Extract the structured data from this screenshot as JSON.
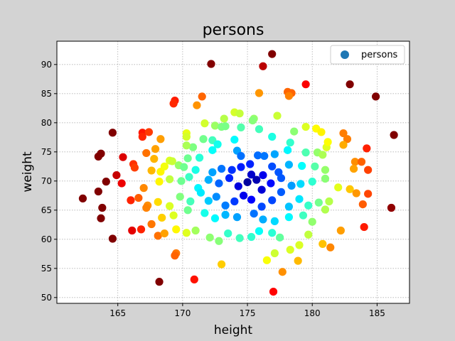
{
  "chart_data": {
    "type": "scatter",
    "title": "persons",
    "xlabel": "height",
    "ylabel": "weight",
    "xlim": [
      160.3,
      187.5
    ],
    "ylim": [
      49.0,
      94.0
    ],
    "xticks": [
      165,
      170,
      175,
      180,
      185
    ],
    "yticks": [
      50,
      55,
      60,
      65,
      70,
      75,
      80,
      85,
      90
    ],
    "grid": true,
    "legend": {
      "position": "top-right",
      "entries": [
        "persons"
      ]
    },
    "colormap": "jet (by distance from center)",
    "series": [
      {
        "name": "persons",
        "points": [
          [
            176.9,
            91.8
          ],
          [
            172.2,
            90.1
          ],
          [
            176.2,
            89.7
          ],
          [
            179.5,
            86.6
          ],
          [
            182.9,
            86.6
          ],
          [
            184.9,
            84.5
          ],
          [
            171.5,
            84.5
          ],
          [
            175.9,
            85.1
          ],
          [
            178.1,
            85.3
          ],
          [
            178.4,
            85.1
          ],
          [
            178.2,
            84.6
          ],
          [
            169.4,
            83.8
          ],
          [
            169.3,
            83.3
          ],
          [
            171.1,
            83.0
          ],
          [
            174.0,
            81.8
          ],
          [
            174.4,
            81.6
          ],
          [
            177.3,
            81.2
          ],
          [
            175.5,
            80.7
          ],
          [
            175.4,
            80.4
          ],
          [
            173.2,
            80.7
          ],
          [
            171.7,
            79.9
          ],
          [
            172.5,
            79.5
          ],
          [
            173.0,
            79.3
          ],
          [
            170.3,
            78.2
          ],
          [
            164.6,
            78.3
          ],
          [
            166.9,
            78.3
          ],
          [
            167.4,
            78.4
          ],
          [
            166.9,
            77.6
          ],
          [
            168.3,
            77.2
          ],
          [
            170.3,
            77.6
          ],
          [
            171.6,
            77.2
          ],
          [
            172.3,
            77.0
          ],
          [
            173.3,
            79.4
          ],
          [
            174.0,
            77.1
          ],
          [
            174.5,
            79.2
          ],
          [
            175.9,
            78.9
          ],
          [
            176.9,
            77.6
          ],
          [
            178.6,
            78.5
          ],
          [
            179.5,
            79.3
          ],
          [
            180.3,
            79.0
          ],
          [
            180.7,
            78.4
          ],
          [
            182.4,
            78.2
          ],
          [
            182.7,
            77.2
          ],
          [
            186.3,
            77.9
          ],
          [
            163.7,
            74.7
          ],
          [
            163.5,
            74.2
          ],
          [
            165.4,
            74.1
          ],
          [
            166.2,
            72.9
          ],
          [
            167.2,
            74.8
          ],
          [
            167.9,
            75.5
          ],
          [
            167.8,
            73.8
          ],
          [
            169.0,
            73.5
          ],
          [
            170.8,
            75.8
          ],
          [
            170.3,
            76.1
          ],
          [
            171.3,
            74.0
          ],
          [
            172.3,
            75.3
          ],
          [
            172.7,
            76.3
          ],
          [
            174.2,
            75.2
          ],
          [
            174.5,
            74.3
          ],
          [
            175.2,
            72.9
          ],
          [
            175.8,
            74.4
          ],
          [
            176.3,
            74.3
          ],
          [
            177.1,
            74.6
          ],
          [
            178.1,
            75.3
          ],
          [
            178.3,
            76.6
          ],
          [
            179.5,
            74.9
          ],
          [
            180.4,
            74.9
          ],
          [
            180.8,
            74.5
          ],
          [
            181.1,
            75.8
          ],
          [
            181.2,
            76.7
          ],
          [
            182.4,
            76.2
          ],
          [
            183.3,
            73.3
          ],
          [
            183.8,
            73.3
          ],
          [
            184.2,
            75.6
          ],
          [
            164.9,
            71.0
          ],
          [
            166.3,
            72.3
          ],
          [
            167.6,
            71.8
          ],
          [
            168.3,
            71.6
          ],
          [
            168.6,
            72.5
          ],
          [
            169.2,
            73.4
          ],
          [
            169.7,
            72.7
          ],
          [
            170.4,
            73.9
          ],
          [
            170.1,
            72.4
          ],
          [
            171.0,
            71.9
          ],
          [
            172.3,
            71.5
          ],
          [
            173.0,
            72.1
          ],
          [
            173.8,
            71.9
          ],
          [
            174.5,
            72.4
          ],
          [
            175.3,
            71.1
          ],
          [
            176.2,
            71.0
          ],
          [
            176.9,
            72.5
          ],
          [
            177.4,
            71.5
          ],
          [
            178.2,
            72.8
          ],
          [
            179.2,
            72.6
          ],
          [
            180.2,
            72.5
          ],
          [
            181.0,
            71.9
          ],
          [
            183.2,
            72.1
          ],
          [
            184.3,
            71.9
          ],
          [
            164.1,
            69.9
          ],
          [
            165.3,
            69.6
          ],
          [
            167.0,
            68.8
          ],
          [
            168.2,
            69.9
          ],
          [
            169.0,
            70.3
          ],
          [
            169.9,
            70.0
          ],
          [
            170.5,
            70.7
          ],
          [
            171.2,
            68.8
          ],
          [
            172.0,
            70.2
          ],
          [
            172.8,
            69.6
          ],
          [
            173.6,
            70.5
          ],
          [
            174.3,
            69.1
          ],
          [
            175.0,
            69.8
          ],
          [
            175.7,
            70.2
          ],
          [
            176.1,
            68.5
          ],
          [
            176.8,
            69.6
          ],
          [
            177.6,
            70.5
          ],
          [
            178.4,
            69.2
          ],
          [
            179.1,
            69.5
          ],
          [
            180.0,
            69.9
          ],
          [
            181.0,
            70.4
          ],
          [
            182.0,
            68.9
          ],
          [
            182.9,
            68.6
          ],
          [
            183.4,
            67.9
          ],
          [
            184.3,
            67.8
          ],
          [
            162.3,
            67.0
          ],
          [
            163.5,
            68.2
          ],
          [
            166.0,
            66.7
          ],
          [
            166.6,
            67.1
          ],
          [
            167.3,
            65.8
          ],
          [
            168.1,
            66.4
          ],
          [
            169.0,
            65.7
          ],
          [
            169.8,
            67.3
          ],
          [
            170.6,
            66.5
          ],
          [
            171.4,
            68.0
          ],
          [
            172.0,
            66.6
          ],
          [
            172.6,
            67.3
          ],
          [
            173.3,
            65.8
          ],
          [
            174.0,
            66.5
          ],
          [
            174.7,
            67.5
          ],
          [
            175.3,
            66.8
          ],
          [
            176.1,
            65.6
          ],
          [
            176.9,
            66.7
          ],
          [
            177.6,
            68.1
          ],
          [
            178.2,
            65.6
          ],
          [
            179.0,
            66.9
          ],
          [
            179.7,
            65.8
          ],
          [
            180.5,
            66.3
          ],
          [
            181.3,
            66.5
          ],
          [
            183.9,
            66.0
          ],
          [
            186.1,
            65.4
          ],
          [
            163.8,
            65.4
          ],
          [
            163.7,
            63.6
          ],
          [
            167.2,
            65.4
          ],
          [
            168.4,
            63.7
          ],
          [
            169.3,
            64.1
          ],
          [
            170.4,
            65.0
          ],
          [
            171.7,
            64.5
          ],
          [
            172.5,
            63.6
          ],
          [
            173.3,
            64.2
          ],
          [
            174.2,
            63.8
          ],
          [
            175.5,
            64.4
          ],
          [
            176.2,
            63.4
          ],
          [
            177.1,
            63.1
          ],
          [
            178.2,
            63.8
          ],
          [
            179.3,
            64.1
          ],
          [
            180.0,
            63.0
          ],
          [
            181.0,
            65.1
          ],
          [
            164.6,
            60.1
          ],
          [
            166.1,
            61.5
          ],
          [
            166.8,
            61.7
          ],
          [
            167.6,
            62.6
          ],
          [
            168.1,
            60.6
          ],
          [
            168.6,
            61.0
          ],
          [
            169.5,
            61.7
          ],
          [
            170.3,
            61.1
          ],
          [
            171.0,
            61.5
          ],
          [
            172.1,
            60.3
          ],
          [
            172.8,
            59.7
          ],
          [
            173.5,
            61.0
          ],
          [
            174.4,
            60.2
          ],
          [
            175.3,
            60.4
          ],
          [
            175.9,
            61.4
          ],
          [
            176.9,
            61.1
          ],
          [
            177.5,
            60.3
          ],
          [
            178.3,
            58.2
          ],
          [
            179.0,
            59.0
          ],
          [
            179.7,
            60.8
          ],
          [
            180.8,
            59.2
          ],
          [
            181.4,
            58.6
          ],
          [
            182.2,
            61.5
          ],
          [
            184.0,
            62.1
          ],
          [
            169.5,
            57.6
          ],
          [
            169.4,
            57.2
          ],
          [
            173.0,
            55.7
          ],
          [
            176.5,
            56.4
          ],
          [
            177.1,
            57.6
          ],
          [
            178.9,
            56.3
          ],
          [
            177.7,
            54.4
          ],
          [
            170.9,
            53.1
          ],
          [
            168.2,
            52.7
          ],
          [
            177.0,
            51.0
          ]
        ]
      }
    ]
  }
}
